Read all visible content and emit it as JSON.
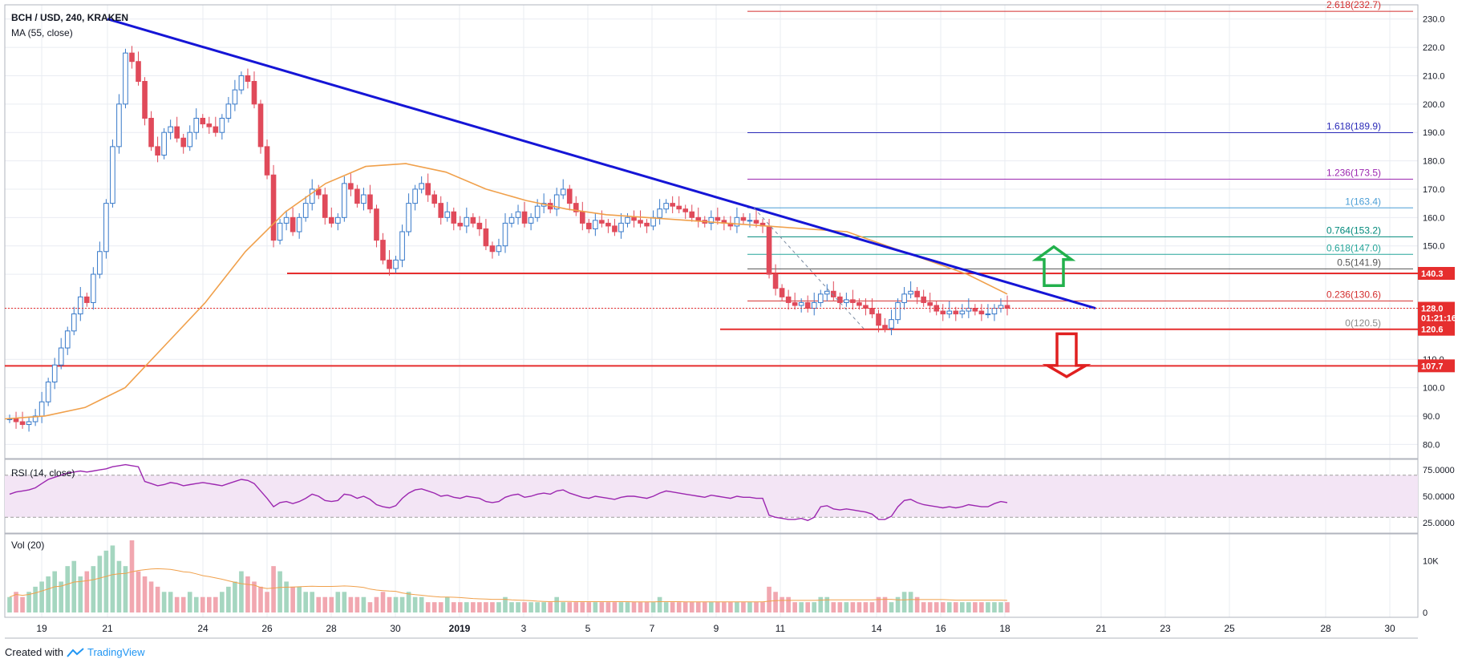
{
  "header": {
    "symbol_line": "BCH / USD, 240, KRAKEN",
    "ma_label": "MA (55, close)"
  },
  "rsi": {
    "label": "RSI (14, close)",
    "ticks": [
      "75.0000",
      "50.0000",
      "25.0000"
    ]
  },
  "volume": {
    "label": "Vol (20)",
    "ticks": [
      "10K",
      "0"
    ]
  },
  "footer": {
    "created_with": "Created with",
    "brand": "TradingView"
  },
  "colors": {
    "up": "#53b987",
    "down": "#eb4d5c",
    "trendline": "#1515d6",
    "support": "#e62e2e",
    "ma": "#f0a04b",
    "rsi": "#9c27b0",
    "arrow_up": "#22b14c",
    "arrow_down": "#e02020",
    "grid": "#e9ecf2"
  },
  "chart_data": {
    "type": "candlestick",
    "ylim": [
      75,
      235
    ],
    "y_ticks": [
      "230.0",
      "220.0",
      "210.0",
      "200.0",
      "190.0",
      "180.0",
      "170.0",
      "160.0",
      "150.0",
      "140.0",
      "128.0",
      "110.0",
      "100.0",
      "90.0",
      "80.0"
    ],
    "x_ticks": [
      "19",
      "21",
      "24",
      "26",
      "28",
      "30",
      "2019",
      "3",
      "5",
      "7",
      "9",
      "11",
      "14",
      "16",
      "18",
      "21",
      "23",
      "25",
      "28",
      "30"
    ],
    "price_tags": [
      {
        "text": "140.3",
        "value": 140.3
      },
      {
        "text": "128.0",
        "value": 128.0
      },
      {
        "text": "01:21:16",
        "value": 124.6
      },
      {
        "text": "120.6",
        "value": 120.6
      },
      {
        "text": "107.7",
        "value": 107.7
      }
    ],
    "fib_levels": [
      {
        "label": "2.618",
        "value_text": "(232.7)",
        "value": 232.7,
        "color": "#d32f2f"
      },
      {
        "label": "1.618",
        "value_text": "(189.9)",
        "value": 189.9,
        "color": "#2a2ab8"
      },
      {
        "label": "1.236",
        "value_text": "(173.5)",
        "value": 173.5,
        "color": "#9c27b0"
      },
      {
        "label": "1",
        "value_text": "(163.4)",
        "value": 163.4,
        "color": "#4a9ed6"
      },
      {
        "label": "0.764",
        "value_text": "(153.2)",
        "value": 153.2,
        "color": "#00897b"
      },
      {
        "label": "0.618",
        "value_text": "(147.0)",
        "value": 147.0,
        "color": "#26a69a"
      },
      {
        "label": "0.5",
        "value_text": "(141.9)",
        "value": 141.9,
        "color": "#555555"
      },
      {
        "label": "0.236",
        "value_text": "(130.6)",
        "value": 130.6,
        "color": "#d32f2f"
      },
      {
        "label": "0",
        "value_text": "(120.5)",
        "value": 120.5,
        "color": "#8a8a8a"
      }
    ],
    "support_levels": [
      140.3,
      120.6,
      107.7
    ],
    "current_price": 128.0,
    "trendline": {
      "from": {
        "date": "Dec 20",
        "price": 230
      },
      "to": {
        "date": "Jan 20",
        "price": 128
      }
    },
    "closes": [
      89,
      88,
      87,
      88,
      90,
      95,
      102,
      108,
      114,
      120,
      126,
      132,
      130,
      140,
      148,
      165,
      185,
      200,
      218,
      215,
      208,
      195,
      185,
      182,
      190,
      192,
      188,
      185,
      190,
      195,
      193,
      192,
      190,
      195,
      200,
      205,
      210,
      208,
      200,
      185,
      175,
      152,
      158,
      160,
      155,
      160,
      165,
      170,
      168,
      160,
      158,
      160,
      172,
      170,
      165,
      168,
      163,
      152,
      145,
      142,
      145,
      155,
      165,
      170,
      172,
      168,
      165,
      160,
      162,
      158,
      157,
      160,
      158,
      156,
      150,
      148,
      150,
      158,
      160,
      162,
      158,
      160,
      164,
      165,
      163,
      168,
      170,
      165,
      162,
      158,
      156,
      159,
      158,
      157,
      155,
      158,
      160,
      159,
      158,
      157,
      160,
      163,
      165,
      164,
      163,
      162,
      160,
      159,
      158,
      160,
      159,
      158,
      157,
      160,
      159,
      159,
      158,
      157,
      140,
      135,
      132,
      130,
      129,
      130,
      128,
      130,
      133,
      134,
      132,
      130,
      131,
      130,
      129,
      128,
      126,
      122,
      121,
      124,
      130,
      133,
      134,
      132,
      130,
      129,
      127,
      126,
      127,
      126,
      127,
      128,
      127,
      126,
      126,
      128,
      129,
      128
    ],
    "rsi_values": [
      52,
      54,
      55,
      56,
      58,
      62,
      66,
      68,
      70,
      72,
      73,
      74,
      73,
      74,
      75,
      76,
      78,
      79,
      80,
      79,
      78,
      64,
      62,
      60,
      61,
      63,
      62,
      60,
      61,
      62,
      63,
      62,
      61,
      60,
      62,
      64,
      66,
      65,
      62,
      55,
      48,
      40,
      44,
      45,
      43,
      45,
      48,
      52,
      50,
      46,
      45,
      46,
      52,
      51,
      48,
      50,
      47,
      42,
      40,
      39,
      41,
      48,
      53,
      56,
      57,
      55,
      53,
      50,
      51,
      49,
      48,
      50,
      49,
      48,
      45,
      44,
      45,
      49,
      51,
      52,
      49,
      50,
      52,
      53,
      52,
      55,
      56,
      53,
      51,
      49,
      48,
      50,
      49,
      48,
      47,
      49,
      50,
      50,
      49,
      48,
      50,
      53,
      55,
      54,
      53,
      52,
      51,
      50,
      49,
      51,
      50,
      49,
      48,
      50,
      49,
      49,
      48,
      48,
      32,
      30,
      29,
      28,
      28,
      29,
      27,
      30,
      40,
      41,
      38,
      37,
      38,
      37,
      36,
      35,
      33,
      28,
      28,
      31,
      40,
      46,
      47,
      44,
      42,
      41,
      40,
      39,
      40,
      39,
      40,
      42,
      41,
      40,
      40,
      43,
      45,
      44
    ],
    "rsi_range": [
      30,
      70
    ],
    "ma_value_samples": [
      89,
      90,
      93,
      100,
      115,
      130,
      148,
      162,
      172,
      178,
      179,
      176,
      170,
      166,
      163,
      161,
      160,
      159,
      158,
      157,
      156,
      155,
      150,
      145,
      140,
      133
    ],
    "volume_values": [
      3,
      4,
      3,
      4,
      5,
      6,
      7,
      8,
      6,
      9,
      10,
      7,
      8,
      9,
      11,
      12,
      13,
      10,
      9,
      14,
      8,
      7,
      6,
      5,
      4,
      4,
      3,
      3,
      4,
      3,
      3,
      3,
      3,
      4,
      5,
      6,
      8,
      7,
      6,
      5,
      4,
      9,
      8,
      6,
      5,
      5,
      4,
      4,
      3,
      3,
      3,
      4,
      4,
      3,
      3,
      3,
      2,
      3,
      4,
      3,
      3,
      3,
      4,
      3,
      3,
      2,
      2,
      2,
      3,
      2,
      2,
      2,
      2,
      2,
      2,
      2,
      2,
      3,
      2,
      2,
      2,
      2,
      2,
      2,
      2,
      3,
      2,
      2,
      2,
      2,
      2,
      2,
      2,
      2,
      2,
      2,
      2,
      2,
      2,
      2,
      2,
      3,
      2,
      2,
      2,
      2,
      2,
      2,
      2,
      2,
      2,
      2,
      2,
      2,
      2,
      2,
      2,
      2,
      5,
      4,
      3,
      3,
      2,
      2,
      2,
      2,
      3,
      3,
      2,
      2,
      2,
      2,
      2,
      2,
      2,
      3,
      3,
      2,
      3,
      4,
      4,
      3,
      2,
      2,
      2,
      2,
      2,
      2,
      2,
      2,
      2,
      2,
      2,
      2,
      2,
      2
    ]
  }
}
